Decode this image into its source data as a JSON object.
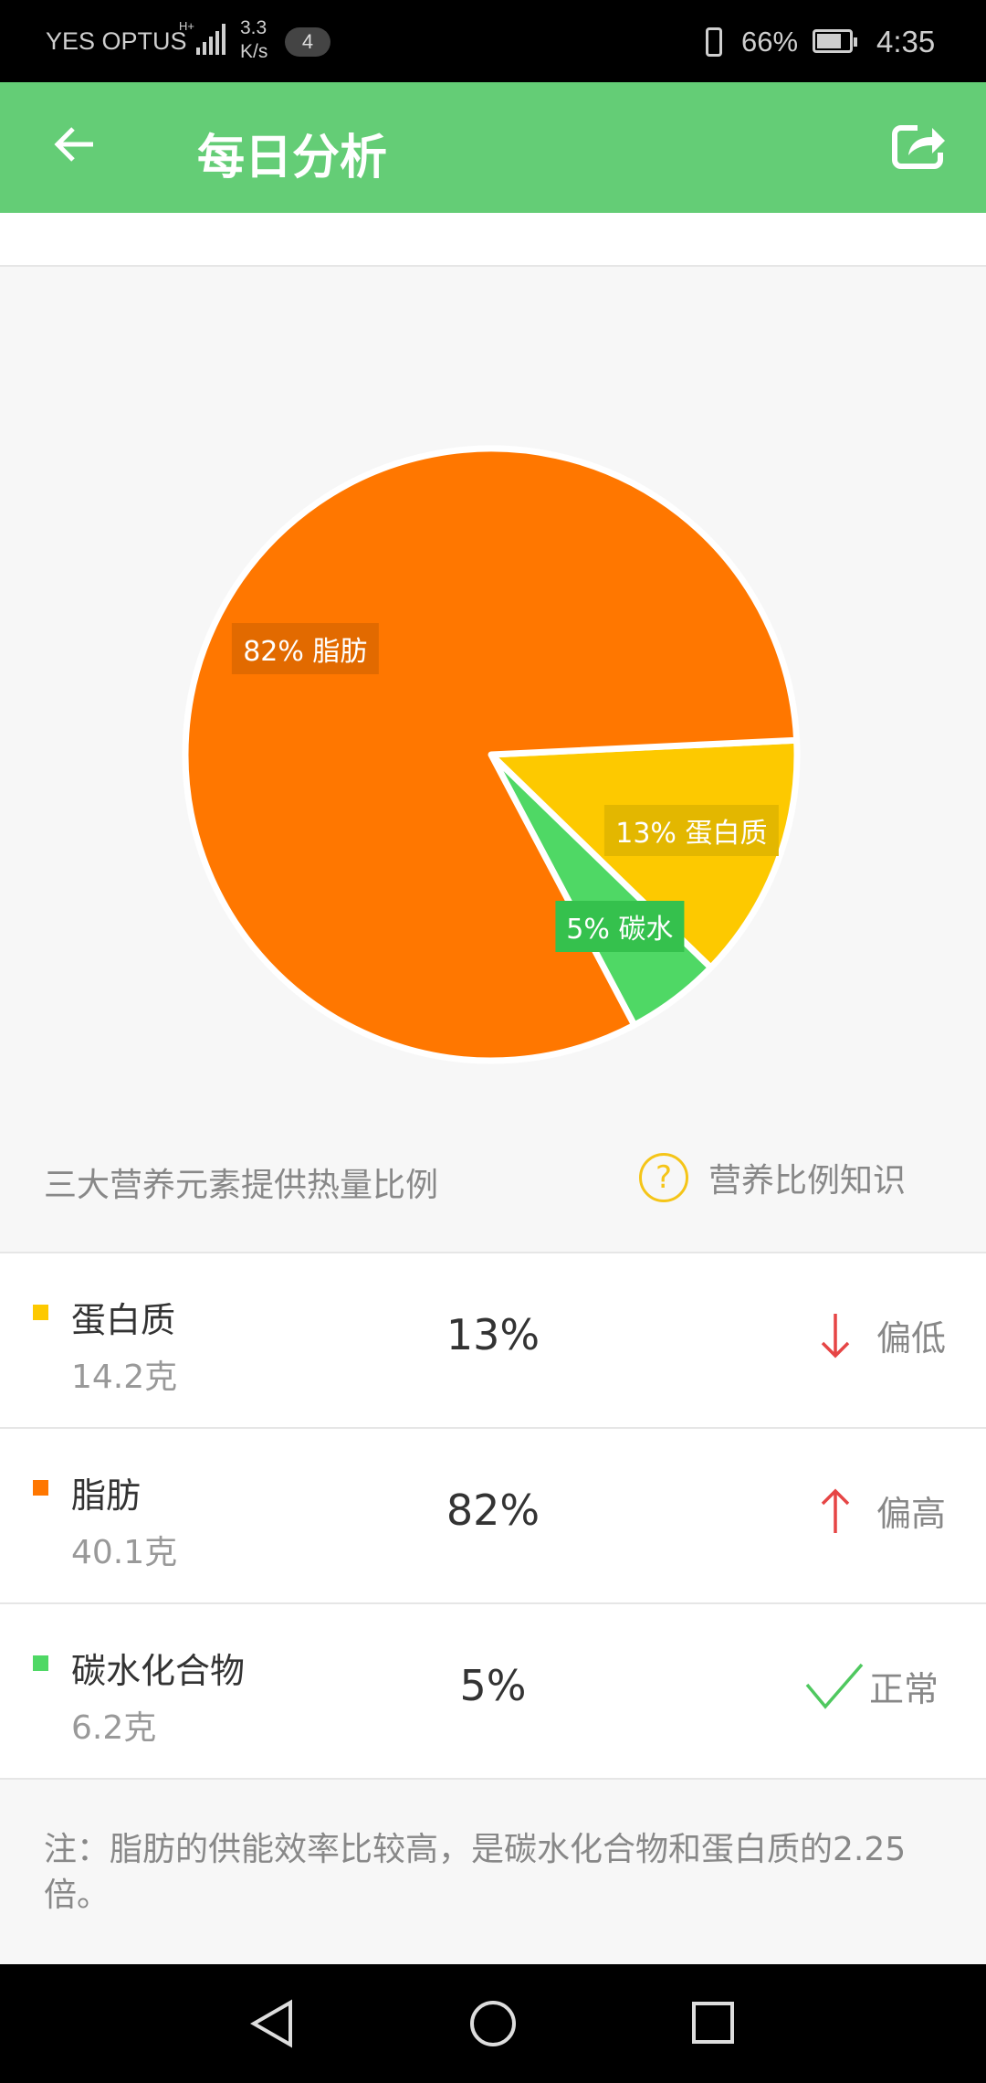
{
  "status_bar": {
    "carrier": "YES OPTUS",
    "network": "H+",
    "speed": "3.3",
    "speed_unit": "K/s",
    "notification_count": "4",
    "battery": "66%",
    "time": "4:35"
  },
  "app_bar": {
    "title": "每日分析",
    "back_icon": "arrow-left-icon",
    "share_icon": "share-icon",
    "color": "#64cd76"
  },
  "chart_data": {
    "type": "pie",
    "title": "三大营养元素提供热量比例",
    "slices": [
      {
        "name": "蛋白质",
        "value": 13,
        "label": "13% 蛋白质",
        "color": "#fdc900",
        "label_bg": "#e3b700"
      },
      {
        "name": "碳水",
        "value": 5,
        "label": "5% 碳水",
        "color": "#4fd865",
        "label_bg": "#35c14d"
      },
      {
        "name": "脂肪",
        "value": 82,
        "label": "82% 脂肪",
        "color": "#ff7700",
        "label_bg": "#e26a00"
      }
    ]
  },
  "caption": "三大营养元素提供热量比例",
  "knowledge_link": "营养比例知识",
  "knowledge_icon": "?",
  "rows": [
    {
      "name": "蛋白质",
      "grams": "14.2克",
      "percent": "13%",
      "status": "偏低",
      "status_icon": "arrow-down-icon",
      "color": "#fdc900"
    },
    {
      "name": "脂肪",
      "grams": "40.1克",
      "percent": "82%",
      "status": "偏高",
      "status_icon": "arrow-up-icon",
      "color": "#ff7700"
    },
    {
      "name": "碳水化合物",
      "grams": "6.2克",
      "percent": "5%",
      "status": "正常",
      "status_icon": "check-icon",
      "color": "#4fd865"
    }
  ],
  "note": "注：脂肪的供能效率比较高，是碳水化合物和蛋白质的2.25倍。"
}
